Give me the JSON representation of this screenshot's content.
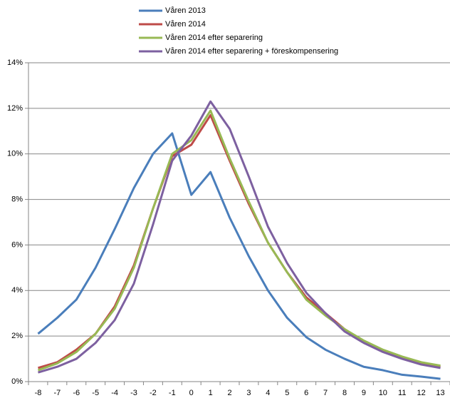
{
  "chart_data": {
    "type": "line",
    "categories": [
      "-8",
      "-7",
      "-6",
      "-5",
      "-4",
      "-3",
      "-2",
      "-1",
      "0",
      "1",
      "2",
      "3",
      "4",
      "5",
      "6",
      "7",
      "8",
      "9",
      "10",
      "11",
      "12",
      "13"
    ],
    "series": [
      {
        "name": "Våren 2013",
        "color": "#4a7ebb",
        "values": [
          2.1,
          2.8,
          3.6,
          5.0,
          6.7,
          8.5,
          10.0,
          10.9,
          8.2,
          9.2,
          7.2,
          5.5,
          4.0,
          2.8,
          1.95,
          1.4,
          1.0,
          0.65,
          0.5,
          0.3,
          0.22,
          0.12
        ]
      },
      {
        "name": "Våren 2014",
        "color": "#be4b48",
        "values": [
          0.6,
          0.85,
          1.4,
          2.1,
          3.3,
          5.1,
          7.6,
          9.9,
          10.4,
          11.7,
          9.7,
          7.8,
          6.1,
          4.8,
          3.7,
          3.0,
          2.3,
          1.75,
          1.35,
          1.05,
          0.8,
          0.65
        ]
      },
      {
        "name": "Våren 2014 efter separering",
        "color": "#98b954",
        "values": [
          0.5,
          0.8,
          1.3,
          2.1,
          3.2,
          5.0,
          7.6,
          10.0,
          10.6,
          11.9,
          9.8,
          7.9,
          6.1,
          4.8,
          3.6,
          2.9,
          2.3,
          1.8,
          1.4,
          1.1,
          0.85,
          0.7
        ]
      },
      {
        "name": "Våren 2014 efter separering + föreskompensering",
        "color": "#7d60a0",
        "values": [
          0.4,
          0.65,
          1.0,
          1.7,
          2.7,
          4.3,
          6.9,
          9.7,
          10.8,
          12.3,
          11.1,
          9.0,
          6.8,
          5.2,
          3.9,
          3.0,
          2.2,
          1.7,
          1.3,
          1.0,
          0.75,
          0.6
        ]
      }
    ],
    "ylim": [
      0,
      14
    ],
    "yticks": [
      {
        "value": 0,
        "label": "0%"
      },
      {
        "value": 2,
        "label": "2%"
      },
      {
        "value": 4,
        "label": "4%"
      },
      {
        "value": 6,
        "label": "6%"
      },
      {
        "value": 8,
        "label": "8%"
      },
      {
        "value": 10,
        "label": "10%"
      },
      {
        "value": 12,
        "label": "12%"
      },
      {
        "value": 14,
        "label": "14%"
      }
    ],
    "grid": true,
    "legend": "top"
  }
}
